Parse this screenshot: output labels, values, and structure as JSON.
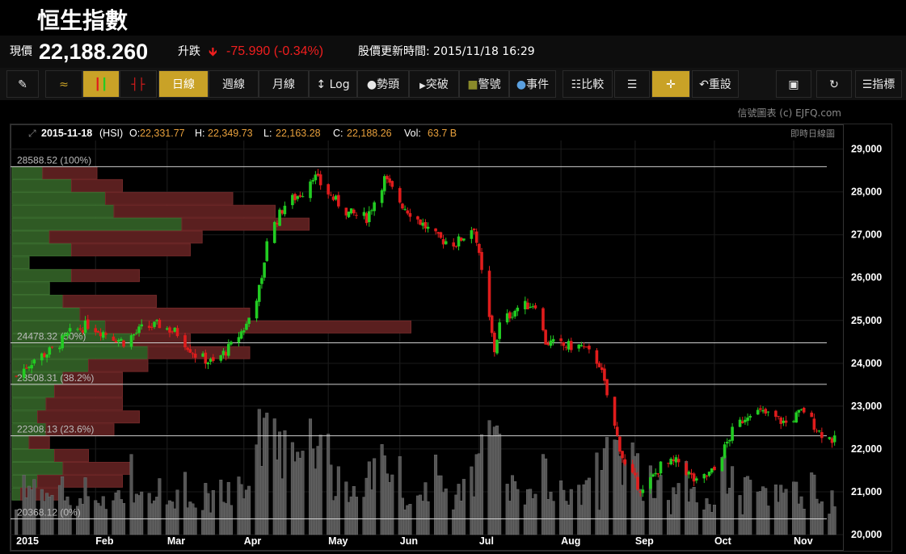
{
  "header": {
    "title": "恒生指數"
  },
  "quote": {
    "price_label": "現價",
    "price": "22,188.260",
    "change_label": "升跌",
    "change": "-75.990 (-0.34%)",
    "update": "股價更新時間: 2015/11/18 16:29"
  },
  "toolbar": {
    "line": "",
    "candle": "",
    "ohlc": "",
    "daily": "日線",
    "weekly": "週線",
    "monthly": "月線",
    "log": "Log",
    "trend": "勢頭",
    "breakout": "突破",
    "alert": "警號",
    "event": "事件",
    "compare": "比較",
    "reset": "重設",
    "indicator": "指標"
  },
  "credit": "信號圖表 (c) EJFQ.com",
  "chart_header": {
    "date": "2015-11-18",
    "symbol": "(HSI)",
    "o_label": "O:",
    "o": "22,331.77",
    "h_label": "H:",
    "h": "22,349.73",
    "l_label": "L:",
    "l": "22,163.28",
    "c_label": "C:",
    "c": "22,188.26",
    "vol_label": "Vol:",
    "vol": "63.7 B",
    "mode": "即時日線圖"
  },
  "colors": {
    "up": "#22cc22",
    "down": "#e01c1c",
    "accent": "#c9a227",
    "value_text": "#e8a03c"
  },
  "chart_data": {
    "type": "candlestick",
    "title": "",
    "ylim": [
      20000,
      29200
    ],
    "y_ticks": [
      "29,000",
      "28,000",
      "27,000",
      "26,000",
      "25,000",
      "24,000",
      "23,000",
      "22,000",
      "21,000",
      "20,000"
    ],
    "y_tick_values": [
      29000,
      28000,
      27000,
      26000,
      25000,
      24000,
      23000,
      22000,
      21000,
      20000
    ],
    "x_ticks": [
      "2015",
      "Feb",
      "Mar",
      "Apr",
      "May",
      "Jun",
      "Jul",
      "Aug",
      "Sep",
      "Oct",
      "Nov"
    ],
    "x_tick_dates": [
      "2015-01-02",
      "2015-02-02",
      "2015-03-02",
      "2015-04-01",
      "2015-05-04",
      "2015-06-01",
      "2015-07-02",
      "2015-08-03",
      "2015-09-01",
      "2015-10-02",
      "2015-11-02"
    ],
    "fib_levels": [
      {
        "label": "28588.52 (100%)",
        "value": 28588.52
      },
      {
        "label": "24478.32 (50%)",
        "value": 24478.32
      },
      {
        "label": "23508.31 (38.2%)",
        "value": 23508.31
      },
      {
        "label": "22308.13 (23.6%)",
        "value": 22308.13
      },
      {
        "label": "20368.12 (0%)",
        "value": 20368.12
      }
    ],
    "price_path": [
      [
        "2015-01-02",
        23700
      ],
      [
        "2015-01-09",
        24100
      ],
      [
        "2015-01-16",
        24300
      ],
      [
        "2015-01-23",
        24700
      ],
      [
        "2015-01-30",
        24900
      ],
      [
        "2015-02-06",
        24700
      ],
      [
        "2015-02-13",
        24500
      ],
      [
        "2015-02-20",
        24800
      ],
      [
        "2015-02-27",
        24900
      ],
      [
        "2015-03-06",
        24700
      ],
      [
        "2015-03-13",
        24200
      ],
      [
        "2015-03-20",
        24000
      ],
      [
        "2015-03-27",
        24400
      ],
      [
        "2015-04-02",
        24900
      ],
      [
        "2015-04-08",
        25900
      ],
      [
        "2015-04-10",
        26900
      ],
      [
        "2015-04-17",
        27700
      ],
      [
        "2015-04-24",
        28000
      ],
      [
        "2015-04-28",
        28400
      ],
      [
        "2015-05-05",
        27900
      ],
      [
        "2015-05-12",
        27500
      ],
      [
        "2015-05-19",
        27400
      ],
      [
        "2015-05-26",
        28300
      ],
      [
        "2015-06-02",
        27700
      ],
      [
        "2015-06-09",
        27300
      ],
      [
        "2015-06-16",
        26900
      ],
      [
        "2015-06-23",
        26800
      ],
      [
        "2015-06-30",
        27200
      ],
      [
        "2015-07-03",
        26100
      ],
      [
        "2015-07-08",
        24300
      ],
      [
        "2015-07-10",
        24900
      ],
      [
        "2015-07-17",
        25300
      ],
      [
        "2015-07-24",
        25400
      ],
      [
        "2015-07-28",
        24500
      ],
      [
        "2015-08-04",
        24400
      ],
      [
        "2015-08-11",
        24400
      ],
      [
        "2015-08-18",
        24000
      ],
      [
        "2015-08-24",
        22500
      ],
      [
        "2015-08-28",
        21600
      ],
      [
        "2015-09-04",
        21000
      ],
      [
        "2015-09-11",
        21600
      ],
      [
        "2015-09-18",
        21700
      ],
      [
        "2015-09-25",
        21200
      ],
      [
        "2015-10-02",
        21500
      ],
      [
        "2015-10-09",
        22400
      ],
      [
        "2015-10-16",
        22900
      ],
      [
        "2015-10-23",
        22800
      ],
      [
        "2015-10-30",
        22600
      ],
      [
        "2015-11-06",
        22900
      ],
      [
        "2015-11-12",
        22400
      ],
      [
        "2015-11-18",
        22188
      ]
    ],
    "volume_profile": {
      "bin_edges_from": 28588,
      "bin_width": 300,
      "up": [
        0.18,
        0.35,
        0.55,
        0.6,
        1.0,
        0.22,
        0.35,
        0.1,
        0.35,
        0.22,
        0.3,
        0.4,
        0.55,
        0.7,
        0.8,
        0.45,
        0.3,
        0.25,
        0.2,
        0.15,
        0.2,
        0.1,
        0.25,
        0.3,
        0.15,
        0.05
      ],
      "down": [
        0.32,
        0.3,
        0.75,
        0.95,
        0.75,
        0.9,
        0.7,
        0.0,
        0.4,
        0.0,
        0.55,
        1.0,
        1.8,
        0.35,
        0.6,
        0.35,
        0.35,
        0.4,
        0.45,
        0.6,
        0.4,
        0.12,
        0.2,
        0.4,
        0.5,
        0.25
      ]
    },
    "volume_note": "Vol: 63.7 B (latest)"
  }
}
